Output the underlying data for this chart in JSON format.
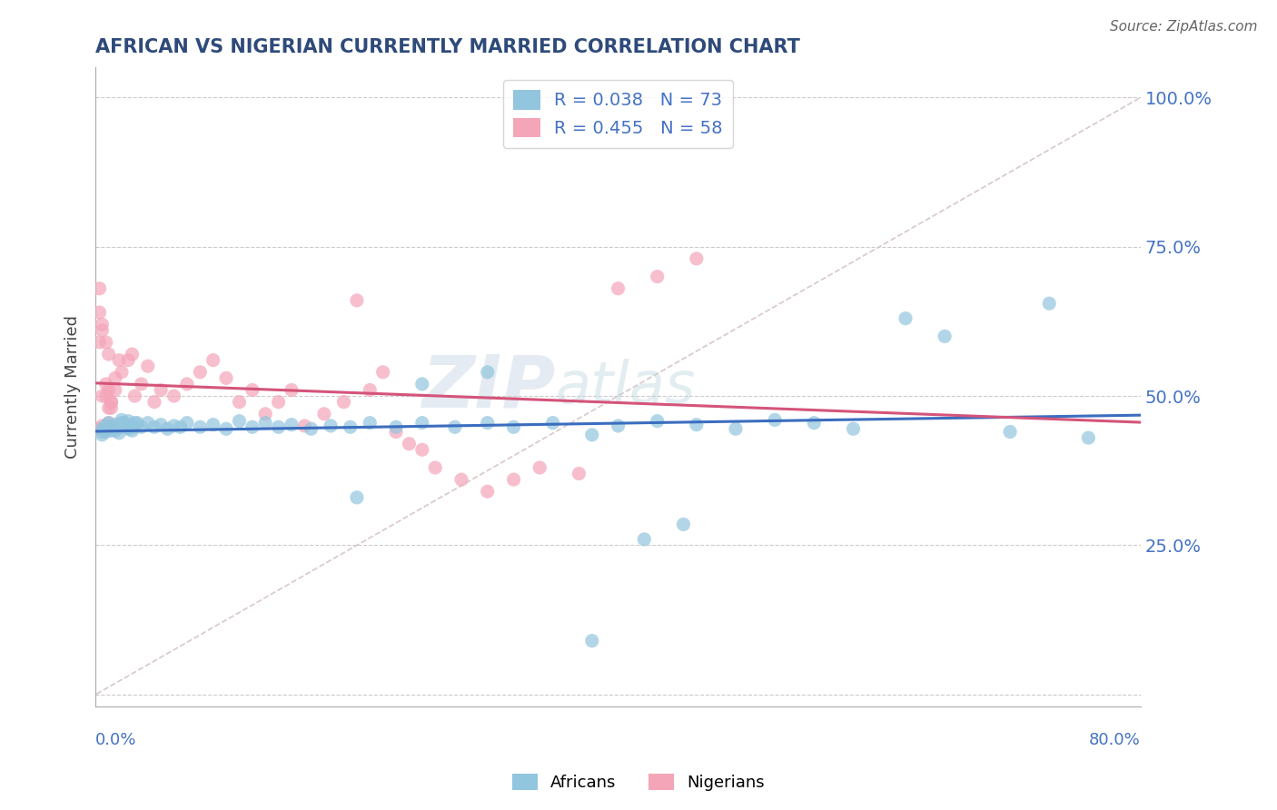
{
  "title": "AFRICAN VS NIGERIAN CURRENTLY MARRIED CORRELATION CHART",
  "source": "Source: ZipAtlas.com",
  "ylabel": "Currently Married",
  "xlim": [
    0.0,
    0.8
  ],
  "ylim": [
    -0.02,
    1.05
  ],
  "yticks": [
    0.0,
    0.25,
    0.5,
    0.75,
    1.0
  ],
  "ytick_labels": [
    "",
    "25.0%",
    "50.0%",
    "75.0%",
    "100.0%"
  ],
  "african_color": "#92c5de",
  "nigerian_color": "#f4a5b8",
  "african_line_color": "#3b6dbf",
  "nigerian_line_color": "#d4547a",
  "diagonal_color": "#d8c8c8",
  "R_african": 0.038,
  "N_african": 73,
  "R_nigerian": 0.455,
  "N_nigerian": 58,
  "watermark_zip": "ZIP",
  "watermark_atlas": "atlas",
  "african_x": [
    0.005,
    0.008,
    0.01,
    0.012,
    0.015,
    0.018,
    0.02,
    0.022,
    0.025,
    0.028,
    0.005,
    0.008,
    0.012,
    0.015,
    0.018,
    0.022,
    0.025,
    0.028,
    0.03,
    0.032,
    0.005,
    0.008,
    0.01,
    0.015,
    0.018,
    0.02,
    0.025,
    0.03,
    0.035,
    0.04,
    0.045,
    0.05,
    0.055,
    0.06,
    0.065,
    0.07,
    0.08,
    0.09,
    0.1,
    0.11,
    0.12,
    0.13,
    0.14,
    0.15,
    0.165,
    0.18,
    0.195,
    0.21,
    0.23,
    0.25,
    0.275,
    0.3,
    0.32,
    0.35,
    0.38,
    0.4,
    0.43,
    0.46,
    0.49,
    0.52,
    0.55,
    0.58,
    0.62,
    0.65,
    0.7,
    0.73,
    0.76,
    0.3,
    0.25,
    0.2,
    0.42,
    0.45,
    0.38
  ],
  "african_y": [
    0.445,
    0.45,
    0.455,
    0.448,
    0.452,
    0.447,
    0.46,
    0.455,
    0.458,
    0.45,
    0.435,
    0.44,
    0.442,
    0.448,
    0.438,
    0.45,
    0.445,
    0.442,
    0.448,
    0.455,
    0.44,
    0.445,
    0.448,
    0.442,
    0.45,
    0.455,
    0.448,
    0.455,
    0.448,
    0.455,
    0.448,
    0.452,
    0.445,
    0.45,
    0.448,
    0.455,
    0.448,
    0.452,
    0.445,
    0.458,
    0.448,
    0.455,
    0.448,
    0.452,
    0.445,
    0.45,
    0.448,
    0.455,
    0.448,
    0.455,
    0.448,
    0.455,
    0.448,
    0.455,
    0.435,
    0.45,
    0.458,
    0.452,
    0.445,
    0.46,
    0.455,
    0.445,
    0.63,
    0.6,
    0.44,
    0.655,
    0.43,
    0.54,
    0.52,
    0.33,
    0.26,
    0.285,
    0.09
  ],
  "nigerian_x": [
    0.003,
    0.005,
    0.008,
    0.01,
    0.003,
    0.005,
    0.008,
    0.01,
    0.012,
    0.015,
    0.003,
    0.005,
    0.008,
    0.01,
    0.012,
    0.003,
    0.005,
    0.008,
    0.01,
    0.012,
    0.015,
    0.018,
    0.02,
    0.025,
    0.028,
    0.03,
    0.035,
    0.04,
    0.045,
    0.05,
    0.06,
    0.07,
    0.08,
    0.09,
    0.1,
    0.11,
    0.12,
    0.13,
    0.14,
    0.15,
    0.16,
    0.175,
    0.19,
    0.2,
    0.21,
    0.22,
    0.23,
    0.24,
    0.25,
    0.26,
    0.28,
    0.3,
    0.32,
    0.34,
    0.37,
    0.4,
    0.43,
    0.46
  ],
  "nigerian_y": [
    0.445,
    0.45,
    0.448,
    0.455,
    0.68,
    0.5,
    0.52,
    0.48,
    0.49,
    0.51,
    0.64,
    0.61,
    0.59,
    0.57,
    0.48,
    0.59,
    0.62,
    0.5,
    0.51,
    0.49,
    0.53,
    0.56,
    0.54,
    0.56,
    0.57,
    0.5,
    0.52,
    0.55,
    0.49,
    0.51,
    0.5,
    0.52,
    0.54,
    0.56,
    0.53,
    0.49,
    0.51,
    0.47,
    0.49,
    0.51,
    0.45,
    0.47,
    0.49,
    0.66,
    0.51,
    0.54,
    0.44,
    0.42,
    0.41,
    0.38,
    0.36,
    0.34,
    0.36,
    0.38,
    0.37,
    0.68,
    0.7,
    0.73
  ]
}
